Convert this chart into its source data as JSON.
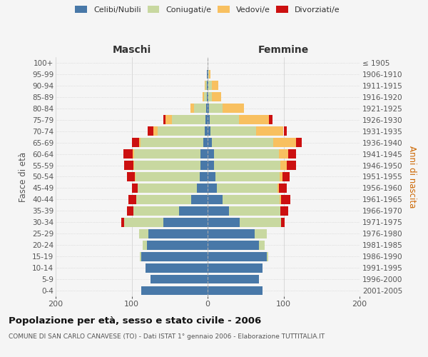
{
  "age_groups": [
    "0-4",
    "5-9",
    "10-14",
    "15-19",
    "20-24",
    "25-29",
    "30-34",
    "35-39",
    "40-44",
    "45-49",
    "50-54",
    "55-59",
    "60-64",
    "65-69",
    "70-74",
    "75-79",
    "80-84",
    "85-89",
    "90-94",
    "95-99",
    "100+"
  ],
  "birth_years": [
    "2001-2005",
    "1996-2000",
    "1991-1995",
    "1986-1990",
    "1981-1985",
    "1976-1980",
    "1971-1975",
    "1966-1970",
    "1961-1965",
    "1956-1960",
    "1951-1955",
    "1946-1950",
    "1941-1945",
    "1936-1940",
    "1931-1935",
    "1926-1930",
    "1921-1925",
    "1916-1920",
    "1911-1915",
    "1906-1910",
    "≤ 1905"
  ],
  "males": {
    "celibi": [
      87,
      75,
      82,
      87,
      80,
      78,
      58,
      38,
      22,
      14,
      10,
      9,
      9,
      6,
      4,
      3,
      2,
      1,
      1,
      1,
      0
    ],
    "coniugati": [
      0,
      0,
      0,
      2,
      5,
      12,
      52,
      60,
      72,
      78,
      85,
      88,
      88,
      82,
      62,
      44,
      16,
      4,
      2,
      0,
      0
    ],
    "vedovi": [
      0,
      0,
      0,
      0,
      0,
      0,
      0,
      0,
      0,
      0,
      1,
      1,
      2,
      2,
      5,
      8,
      5,
      2,
      1,
      0,
      0
    ],
    "divorziati": [
      0,
      0,
      0,
      0,
      0,
      0,
      4,
      8,
      10,
      8,
      10,
      12,
      12,
      10,
      8,
      3,
      0,
      0,
      0,
      0,
      0
    ]
  },
  "females": {
    "nubili": [
      72,
      68,
      72,
      78,
      68,
      62,
      42,
      28,
      20,
      12,
      10,
      8,
      8,
      6,
      4,
      3,
      2,
      1,
      1,
      1,
      0
    ],
    "coniugate": [
      0,
      0,
      0,
      2,
      7,
      16,
      55,
      68,
      75,
      80,
      85,
      88,
      86,
      80,
      60,
      38,
      18,
      5,
      5,
      1,
      0
    ],
    "vedove": [
      0,
      0,
      0,
      0,
      0,
      0,
      0,
      0,
      2,
      2,
      4,
      8,
      12,
      30,
      36,
      40,
      28,
      12,
      8,
      2,
      0
    ],
    "divorziate": [
      0,
      0,
      0,
      0,
      0,
      0,
      4,
      10,
      12,
      10,
      9,
      12,
      10,
      8,
      4,
      4,
      0,
      0,
      0,
      0,
      0
    ]
  },
  "colors": {
    "celibi_nubili": "#4878a8",
    "coniugati_e": "#c8d8a0",
    "vedovi_e": "#f8c060",
    "divorziati_e": "#cc1010"
  },
  "xlim": [
    -200,
    200
  ],
  "xticks": [
    -200,
    -100,
    0,
    100,
    200
  ],
  "xticklabels": [
    "200",
    "100",
    "0",
    "100",
    "200"
  ],
  "title": "Popolazione per età, sesso e stato civile - 2006",
  "subtitle": "COMUNE DI SAN CARLO CANAVESE (TO) - Dati ISTAT 1° gennaio 2006 - Elaborazione TUTTITALIA.IT",
  "ylabel_left": "Fasce di età",
  "ylabel_right": "Anni di nascita",
  "label_maschi": "Maschi",
  "label_femmine": "Femmine",
  "legend_labels": [
    "Celibi/Nubili",
    "Coniugati/e",
    "Vedovi/e",
    "Divorziati/e"
  ],
  "bg_color": "#f5f5f5",
  "bar_height": 0.8
}
